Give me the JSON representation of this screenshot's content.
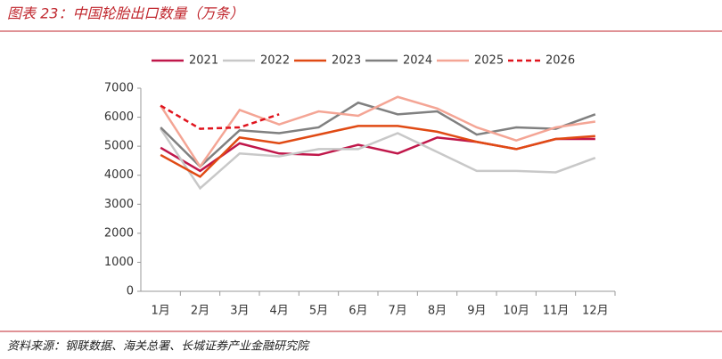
{
  "chart_data": {
    "type": "line",
    "title": "图表 23：中国轮胎出口数量（万条）",
    "source": "资料来源：钢联数据、海关总署、长城证券产业金融研究院",
    "categories": [
      "1月",
      "2月",
      "3月",
      "4月",
      "5月",
      "6月",
      "7月",
      "8月",
      "9月",
      "10月",
      "11月",
      "12月"
    ],
    "series": [
      {
        "name": "2021",
        "color": "#c0174a",
        "dash": false,
        "values": [
          4950,
          4150,
          5100,
          4750,
          4700,
          5050,
          4750,
          5300,
          5150,
          4900,
          5250,
          5250
        ]
      },
      {
        "name": "2022",
        "color": "#c8c8c8",
        "dash": false,
        "values": [
          5600,
          3550,
          4750,
          4650,
          4900,
          4900,
          5450,
          4800,
          4150,
          4150,
          4100,
          4600
        ]
      },
      {
        "name": "2023",
        "color": "#e04a14",
        "dash": false,
        "values": [
          4700,
          3950,
          5300,
          5100,
          5400,
          5700,
          5700,
          5500,
          5150,
          4900,
          5250,
          5350
        ]
      },
      {
        "name": "2024",
        "color": "#808080",
        "dash": false,
        "values": [
          5650,
          4300,
          5550,
          5450,
          5650,
          6500,
          6100,
          6200,
          5400,
          5650,
          5600,
          6100
        ]
      },
      {
        "name": "2025",
        "color": "#f4a595",
        "dash": false,
        "values": [
          6400,
          4300,
          6250,
          5750,
          6200,
          6050,
          6700,
          6300,
          5650,
          5200,
          5650,
          5850
        ]
      },
      {
        "name": "2026",
        "color": "#e0141e",
        "dash": true,
        "values": [
          6400,
          5600,
          5650,
          6100,
          null,
          null,
          null,
          null,
          null,
          null,
          null,
          null
        ]
      }
    ],
    "ylim": [
      0,
      7000
    ],
    "yticks": [
      0,
      1000,
      2000,
      3000,
      4000,
      5000,
      6000,
      7000
    ],
    "grid": false,
    "legend": "top"
  }
}
